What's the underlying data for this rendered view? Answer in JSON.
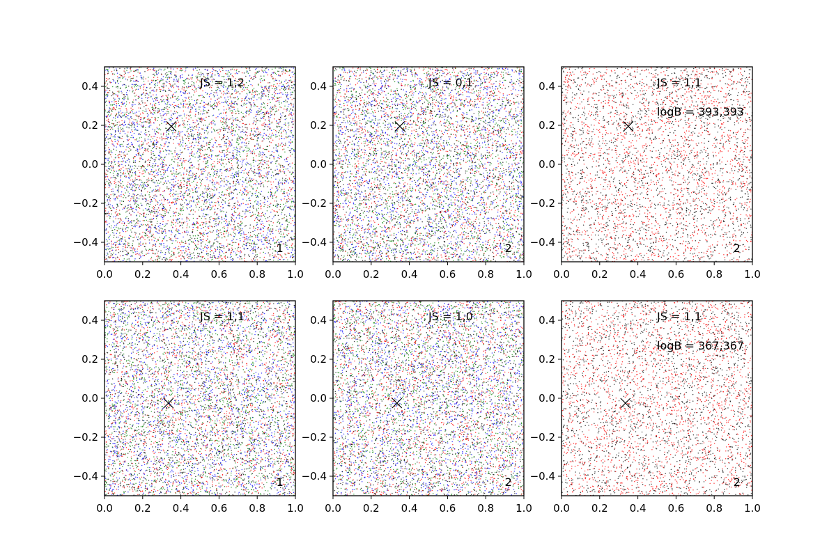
{
  "chart_data": [
    {
      "type": "scatter",
      "xlim": [
        0.0,
        1.0
      ],
      "ylim": [
        -0.5,
        0.5
      ],
      "x_ticks": [
        "0.0",
        "0.2",
        "0.4",
        "0.6",
        "0.8",
        "1.0"
      ],
      "y_ticks": [
        "-0.4",
        "-0.2",
        "0.0",
        "0.2",
        "0.4"
      ],
      "series_colors": [
        "#ff0000",
        "#0000ff",
        "#008000",
        "#000000"
      ],
      "point_count": 6500,
      "marker": {
        "x": 0.35,
        "y": 0.195
      },
      "annotations": {
        "js": "JS = 1,2",
        "logb": "",
        "index": "1"
      }
    },
    {
      "type": "scatter",
      "xlim": [
        0.0,
        1.0
      ],
      "ylim": [
        -0.5,
        0.5
      ],
      "x_ticks": [
        "0.0",
        "0.2",
        "0.4",
        "0.6",
        "0.8",
        "1.0"
      ],
      "y_ticks": [
        "-0.4",
        "-0.2",
        "0.0",
        "0.2",
        "0.4"
      ],
      "series_colors": [
        "#ff0000",
        "#0000ff",
        "#008000",
        "#000000"
      ],
      "point_count": 6500,
      "marker": {
        "x": 0.35,
        "y": 0.195
      },
      "annotations": {
        "js": "JS = 0,1",
        "logb": "",
        "index": "2"
      }
    },
    {
      "type": "scatter",
      "xlim": [
        0.0,
        1.0
      ],
      "ylim": [
        -0.5,
        0.5
      ],
      "x_ticks": [
        "0.0",
        "0.2",
        "0.4",
        "0.6",
        "0.8",
        "1.0"
      ],
      "y_ticks": [
        "-0.4",
        "-0.2",
        "0.0",
        "0.2",
        "0.4"
      ],
      "series_colors": [
        "#ff0000",
        "#000000"
      ],
      "point_count": 4000,
      "marker": {
        "x": 0.35,
        "y": 0.195
      },
      "annotations": {
        "js": "JS = 1,1",
        "logb": "logB = 393,393",
        "index": "2"
      }
    },
    {
      "type": "scatter",
      "xlim": [
        0.0,
        1.0
      ],
      "ylim": [
        -0.5,
        0.5
      ],
      "x_ticks": [
        "0.0",
        "0.2",
        "0.4",
        "0.6",
        "0.8",
        "1.0"
      ],
      "y_ticks": [
        "-0.4",
        "-0.2",
        "0.0",
        "0.2",
        "0.4"
      ],
      "series_colors": [
        "#ff0000",
        "#0000ff",
        "#008000",
        "#000000"
      ],
      "point_count": 6500,
      "marker": {
        "x": 0.335,
        "y": -0.025
      },
      "annotations": {
        "js": "JS = 1,1",
        "logb": "",
        "index": "1"
      }
    },
    {
      "type": "scatter",
      "xlim": [
        0.0,
        1.0
      ],
      "ylim": [
        -0.5,
        0.5
      ],
      "x_ticks": [
        "0.0",
        "0.2",
        "0.4",
        "0.6",
        "0.8",
        "1.0"
      ],
      "y_ticks": [
        "-0.4",
        "-0.2",
        "0.0",
        "0.2",
        "0.4"
      ],
      "series_colors": [
        "#ff0000",
        "#0000ff",
        "#008000",
        "#000000"
      ],
      "point_count": 6500,
      "marker": {
        "x": 0.335,
        "y": -0.025
      },
      "annotations": {
        "js": "JS = 1,0",
        "logb": "",
        "index": "2"
      }
    },
    {
      "type": "scatter",
      "xlim": [
        0.0,
        1.0
      ],
      "ylim": [
        -0.5,
        0.5
      ],
      "x_ticks": [
        "0.0",
        "0.2",
        "0.4",
        "0.6",
        "0.8",
        "1.0"
      ],
      "y_ticks": [
        "-0.4",
        "-0.2",
        "0.0",
        "0.2",
        "0.4"
      ],
      "series_colors": [
        "#ff0000",
        "#000000"
      ],
      "point_count": 4000,
      "marker": {
        "x": 0.335,
        "y": -0.025
      },
      "annotations": {
        "js": "JS = 1,1",
        "logb": "logB = 367,367",
        "index": "2"
      }
    }
  ]
}
